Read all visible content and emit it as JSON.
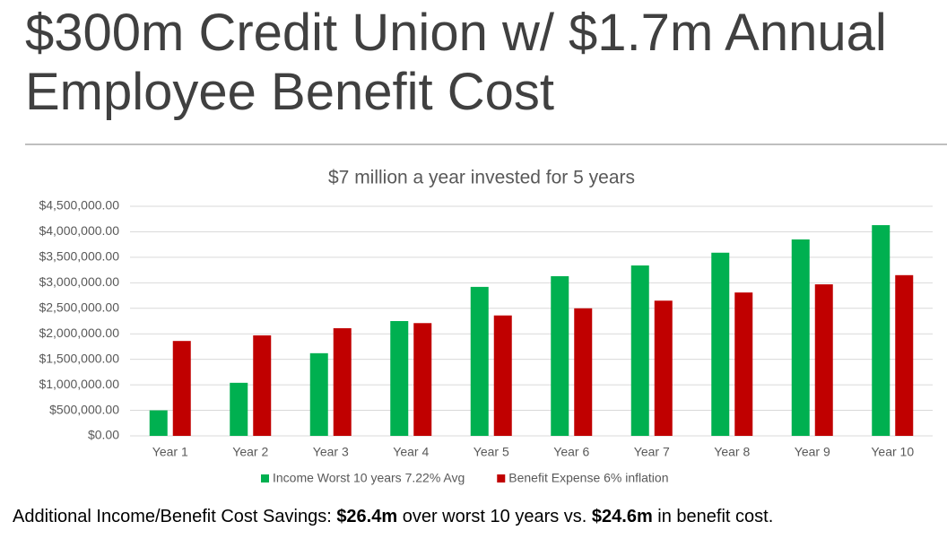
{
  "title": "$300m Credit Union w/ $1.7m Annual Employee Benefit Cost",
  "chart_data": {
    "type": "bar",
    "title": "$7 million a year invested for 5 years",
    "categories": [
      "Year 1",
      "Year 2",
      "Year 3",
      "Year 4",
      "Year 5",
      "Year 6",
      "Year 7",
      "Year 8",
      "Year 9",
      "Year 10"
    ],
    "series": [
      {
        "name": "Income Worst 10 years 7.22% Avg",
        "color": "#00b050",
        "values": [
          500000,
          1040000,
          1620000,
          2250000,
          2920000,
          3130000,
          3340000,
          3590000,
          3850000,
          4130000
        ]
      },
      {
        "name": "Benefit Expense 6% inflation",
        "color": "#c00000",
        "values": [
          1860000,
          1970000,
          2110000,
          2210000,
          2360000,
          2500000,
          2650000,
          2810000,
          2970000,
          3150000
        ]
      }
    ],
    "ylim": [
      0,
      4500000
    ],
    "yticks": [
      {
        "value": 0,
        "label": "$0.00"
      },
      {
        "value": 500000,
        "label": "$500,000.00"
      },
      {
        "value": 1000000,
        "label": "$1,000,000.00"
      },
      {
        "value": 1500000,
        "label": "$1,500,000.00"
      },
      {
        "value": 2000000,
        "label": "$2,000,000.00"
      },
      {
        "value": 2500000,
        "label": "$2,500,000.00"
      },
      {
        "value": 3000000,
        "label": "$3,000,000.00"
      },
      {
        "value": 3500000,
        "label": "$3,500,000.00"
      },
      {
        "value": 4000000,
        "label": "$4,000,000.00"
      },
      {
        "value": 4500000,
        "label": "$4,500,000.00"
      }
    ],
    "grid": true,
    "legend": "bottom"
  },
  "footnote": [
    "Additional Income/Benefit Cost Savings: ",
    "$26.4m",
    " over worst 10 years vs. ",
    "$24.6m",
    " in benefit cost."
  ]
}
